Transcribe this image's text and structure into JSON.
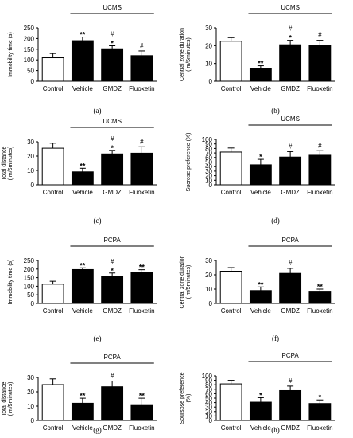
{
  "chart_data": [
    {
      "panel": "(a)",
      "type": "bar",
      "group_label": "UCMS",
      "ylabel": "Immobility time (s)",
      "ylim": [
        0,
        250
      ],
      "yticks": [
        0,
        50,
        100,
        150,
        200,
        250
      ],
      "categories": [
        "Control",
        "Vehicle",
        "GMDZ",
        "Fluoxetin"
      ],
      "values": [
        110,
        190,
        152,
        120
      ],
      "errors": [
        20,
        17,
        14,
        22
      ],
      "fills": [
        "#ffffff",
        "#000000",
        "#000000",
        "#000000"
      ],
      "annotations": [
        [],
        [
          "**"
        ],
        [
          "#",
          "*"
        ],
        [
          "#"
        ]
      ]
    },
    {
      "panel": "(b)",
      "type": "bar",
      "group_label": "UCMS",
      "ylabel": "Central zone duration\n( m/5minutes)",
      "ylim": [
        0,
        30
      ],
      "yticks": [
        0,
        10,
        20,
        30
      ],
      "categories": [
        "Control",
        "Vehicle",
        "GMDZ",
        "Fluoxetin"
      ],
      "values": [
        22.5,
        7.2,
        20.5,
        20
      ],
      "errors": [
        2,
        1.5,
        2.5,
        3
      ],
      "fills": [
        "#ffffff",
        "#000000",
        "#000000",
        "#000000"
      ],
      "annotations": [
        [],
        [
          "**"
        ],
        [
          "#",
          "*"
        ],
        [
          "#"
        ]
      ]
    },
    {
      "panel": "(c)",
      "type": "bar",
      "group_label": "UCMS",
      "ylabel": "Total distance\n( m/5minutes)",
      "ylim": [
        0,
        30
      ],
      "yticks": [
        0,
        10,
        20,
        30
      ],
      "categories": [
        "Control",
        "Vehicle",
        "GMDZ",
        "Fluoxetin"
      ],
      "values": [
        25.5,
        9,
        21.5,
        22
      ],
      "errors": [
        3.5,
        2.5,
        2.5,
        4.5
      ],
      "fills": [
        "#ffffff",
        "#000000",
        "#000000",
        "#000000"
      ],
      "annotations": [
        [],
        [
          "**"
        ],
        [
          "#",
          "*"
        ],
        [
          "#"
        ]
      ]
    },
    {
      "panel": "(d)",
      "type": "bar",
      "group_label": "UCMS",
      "ylabel": "Sucrose preference (%)",
      "ylim": [
        0,
        100
      ],
      "yticks": [
        0,
        10,
        20,
        30,
        40,
        50,
        60,
        70,
        80,
        90,
        100
      ],
      "categories": [
        "Control",
        "Vehicle",
        "GMDZ",
        "Fluoxetin"
      ],
      "values": [
        72,
        44,
        61,
        65
      ],
      "errors": [
        9,
        12,
        12,
        10
      ],
      "fills": [
        "#ffffff",
        "#000000",
        "#000000",
        "#000000"
      ],
      "annotations": [
        [],
        [
          "*"
        ],
        [
          "#"
        ],
        [
          "#"
        ]
      ]
    },
    {
      "panel": "(e)",
      "type": "bar",
      "group_label": "PCPA",
      "ylabel": "Immobility time (s)",
      "ylim": [
        0,
        250
      ],
      "yticks": [
        0,
        50,
        100,
        150,
        200,
        250
      ],
      "categories": [
        "Control",
        "Vehicle",
        "GMDZ",
        "Fluoxetin"
      ],
      "values": [
        112,
        197,
        157,
        182
      ],
      "errors": [
        17,
        10,
        20,
        14
      ],
      "fills": [
        "#ffffff",
        "#000000",
        "#000000",
        "#000000"
      ],
      "annotations": [
        [],
        [
          "**"
        ],
        [
          "#",
          "*"
        ],
        [
          "**"
        ]
      ]
    },
    {
      "panel": "(f)",
      "type": "bar",
      "group_label": "PCPA",
      "ylabel": "Central zone duration\n( m/5minutes)",
      "ylim": [
        0,
        30
      ],
      "yticks": [
        0,
        10,
        20,
        30
      ],
      "categories": [
        "Control",
        "Vehicle",
        "GMDZ",
        "Fluoxetin"
      ],
      "values": [
        22.5,
        9,
        21,
        8
      ],
      "errors": [
        2.5,
        2.5,
        3.5,
        2
      ],
      "fills": [
        "#ffffff",
        "#000000",
        "#000000",
        "#000000"
      ],
      "annotations": [
        [],
        [
          "**"
        ],
        [
          "#"
        ],
        [
          "**"
        ]
      ]
    },
    {
      "panel": "(g)",
      "type": "bar",
      "group_label": "PCPA",
      "ylabel": "Total distance\n( m/5minutes)",
      "ylim": [
        0,
        30
      ],
      "yticks": [
        0,
        10,
        20,
        30
      ],
      "categories": [
        "Control",
        "Vehicle",
        "GMDZ",
        "Fluoxetin"
      ],
      "values": [
        25,
        12,
        23.5,
        11
      ],
      "errors": [
        4,
        3.5,
        4,
        4.5
      ],
      "fills": [
        "#ffffff",
        "#000000",
        "#000000",
        "#000000"
      ],
      "annotations": [
        [],
        [
          "**"
        ],
        [
          "#"
        ],
        [
          "**"
        ]
      ]
    },
    {
      "panel": "(h)",
      "type": "bar",
      "group_label": "PCPA",
      "ylabel": "Soursose preference\n(%)",
      "ylim": [
        0,
        100
      ],
      "yticks": [
        0,
        10,
        20,
        30,
        40,
        50,
        60,
        70,
        80,
        90,
        100
      ],
      "categories": [
        "Control",
        "Vehicle",
        "GMDZ",
        "Fluoxetin"
      ],
      "values": [
        82,
        41,
        67,
        38
      ],
      "errors": [
        8,
        10,
        10,
        8
      ],
      "fills": [
        "#ffffff",
        "#000000",
        "#000000",
        "#000000"
      ],
      "annotations": [
        [],
        [
          "*"
        ],
        [
          "#"
        ],
        [
          "*"
        ]
      ]
    }
  ]
}
